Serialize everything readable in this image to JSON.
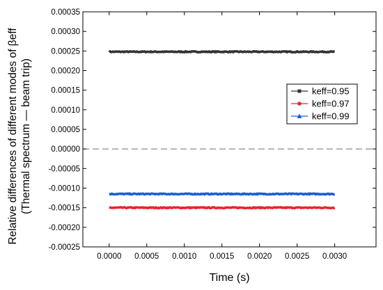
{
  "chart_data": {
    "type": "line",
    "xlabel": "Time (s)",
    "ylabel": "Relative differences of different modes of βeff",
    "ylabel2": "(Thermal spectrum — beam trip)",
    "xlim": [
      -0.00035,
      0.00355
    ],
    "ylim": [
      -0.00025,
      0.00035
    ],
    "x_ticks": [
      "0.0000",
      "0.0005",
      "0.0010",
      "0.0015",
      "0.0020",
      "0.0025",
      "0.0030"
    ],
    "x_tick_values": [
      0,
      0.0005,
      0.001,
      0.0015,
      0.002,
      0.0025,
      0.003
    ],
    "y_ticks": [
      "0.00035",
      "0.00030",
      "0.00025",
      "0.00020",
      "0.00015",
      "0.00010",
      "0.00005",
      "0.00000",
      "-0.00005",
      "-0.00010",
      "-0.00015",
      "-0.00020",
      "-0.00025"
    ],
    "y_tick_values": [
      0.00035,
      0.0003,
      0.00025,
      0.0002,
      0.00015,
      0.0001,
      5e-05,
      0,
      -5e-05,
      -0.0001,
      -0.00015,
      -0.0002,
      -0.00025
    ],
    "reference_line": {
      "y": 0,
      "style": "dashed",
      "color": "#7f7f7f"
    },
    "legend_position": "right",
    "grid": false,
    "series": [
      {
        "name": "keff=0.95",
        "color": "#333333",
        "marker": "square",
        "x_range": [
          0,
          0.003
        ],
        "y": 0.000248,
        "noise": 1.2e-06
      },
      {
        "name": "keff=0.97",
        "color": "#e8262b",
        "marker": "circle",
        "x_range": [
          0,
          0.003
        ],
        "y": -0.00015,
        "noise": 1.2e-06
      },
      {
        "name": "keff=0.99",
        "color": "#1c5fd4",
        "marker": "triangle",
        "x_range": [
          0,
          0.003
        ],
        "y": -0.000115,
        "noise": 1.2e-06
      }
    ]
  }
}
